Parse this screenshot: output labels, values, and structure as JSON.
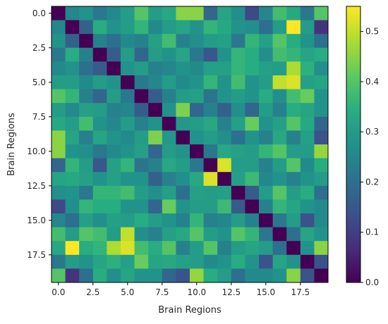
{
  "chart_data": {
    "type": "heatmap",
    "title": "",
    "xlabel": "Brain Regions",
    "ylabel": "Brain Regions",
    "n": 20,
    "xticks": [
      0.0,
      2.5,
      5.0,
      7.5,
      10.0,
      12.5,
      15.0,
      17.5
    ],
    "xtick_labels": [
      "0.0",
      "2.5",
      "5.0",
      "7.5",
      "10.0",
      "12.5",
      "15.0",
      "17.5"
    ],
    "yticks": [
      0.0,
      2.5,
      5.0,
      7.5,
      10.0,
      12.5,
      15.0,
      17.5
    ],
    "ytick_labels": [
      "0.0",
      "2.5",
      "5.0",
      "7.5",
      "10.0",
      "12.5",
      "15.0",
      "17.5"
    ],
    "colormap": "viridis",
    "vmin": 0.0,
    "vmax": 0.55,
    "colorbar_ticks": [
      0.0,
      0.1,
      0.2,
      0.3,
      0.4,
      0.5
    ],
    "colorbar_tick_labels": [
      "0.0",
      "0.1",
      "0.2",
      "0.3",
      "0.4",
      "0.5"
    ],
    "colorbar_placement": "right",
    "grid": false,
    "values": [
      [
        0.0,
        0.25,
        0.28,
        0.22,
        0.26,
        0.3,
        0.4,
        0.3,
        0.33,
        0.45,
        0.45,
        0.18,
        0.32,
        0.27,
        0.12,
        0.25,
        0.38,
        0.33,
        0.22,
        0.4
      ],
      [
        0.25,
        0.0,
        0.17,
        0.34,
        0.28,
        0.3,
        0.36,
        0.26,
        0.3,
        0.32,
        0.28,
        0.36,
        0.33,
        0.28,
        0.27,
        0.2,
        0.3,
        0.55,
        0.3,
        0.08
      ],
      [
        0.28,
        0.17,
        0.0,
        0.24,
        0.2,
        0.26,
        0.24,
        0.31,
        0.38,
        0.24,
        0.27,
        0.3,
        0.31,
        0.22,
        0.36,
        0.31,
        0.4,
        0.34,
        0.28,
        0.2
      ],
      [
        0.22,
        0.34,
        0.24,
        0.0,
        0.16,
        0.3,
        0.18,
        0.3,
        0.28,
        0.32,
        0.22,
        0.15,
        0.28,
        0.36,
        0.34,
        0.27,
        0.38,
        0.36,
        0.32,
        0.34
      ],
      [
        0.26,
        0.28,
        0.2,
        0.16,
        0.0,
        0.28,
        0.3,
        0.24,
        0.25,
        0.28,
        0.26,
        0.31,
        0.31,
        0.36,
        0.34,
        0.31,
        0.3,
        0.48,
        0.35,
        0.27
      ],
      [
        0.3,
        0.3,
        0.26,
        0.3,
        0.28,
        0.0,
        0.22,
        0.25,
        0.3,
        0.26,
        0.28,
        0.36,
        0.28,
        0.38,
        0.28,
        0.3,
        0.5,
        0.52,
        0.31,
        0.32
      ],
      [
        0.4,
        0.36,
        0.24,
        0.18,
        0.3,
        0.22,
        0.0,
        0.16,
        0.24,
        0.3,
        0.31,
        0.21,
        0.28,
        0.3,
        0.28,
        0.34,
        0.27,
        0.38,
        0.42,
        0.28
      ],
      [
        0.3,
        0.26,
        0.31,
        0.3,
        0.24,
        0.25,
        0.16,
        0.0,
        0.28,
        0.44,
        0.18,
        0.24,
        0.17,
        0.27,
        0.18,
        0.3,
        0.24,
        0.34,
        0.32,
        0.28
      ],
      [
        0.33,
        0.3,
        0.38,
        0.28,
        0.25,
        0.3,
        0.24,
        0.28,
        0.0,
        0.29,
        0.3,
        0.33,
        0.24,
        0.31,
        0.42,
        0.28,
        0.31,
        0.4,
        0.33,
        0.18
      ],
      [
        0.45,
        0.32,
        0.24,
        0.32,
        0.28,
        0.26,
        0.3,
        0.44,
        0.29,
        0.0,
        0.28,
        0.3,
        0.27,
        0.2,
        0.28,
        0.24,
        0.33,
        0.24,
        0.31,
        0.14
      ],
      [
        0.45,
        0.28,
        0.27,
        0.22,
        0.26,
        0.28,
        0.31,
        0.18,
        0.3,
        0.28,
        0.0,
        0.22,
        0.33,
        0.31,
        0.3,
        0.36,
        0.4,
        0.3,
        0.3,
        0.46
      ],
      [
        0.18,
        0.36,
        0.3,
        0.15,
        0.31,
        0.36,
        0.21,
        0.24,
        0.33,
        0.3,
        0.22,
        0.0,
        0.52,
        0.3,
        0.3,
        0.24,
        0.3,
        0.4,
        0.26,
        0.34
      ],
      [
        0.32,
        0.33,
        0.31,
        0.28,
        0.31,
        0.28,
        0.28,
        0.17,
        0.24,
        0.27,
        0.33,
        0.52,
        0.0,
        0.31,
        0.37,
        0.25,
        0.28,
        0.24,
        0.28,
        0.3
      ],
      [
        0.27,
        0.28,
        0.22,
        0.36,
        0.36,
        0.38,
        0.3,
        0.27,
        0.31,
        0.2,
        0.31,
        0.3,
        0.31,
        0.0,
        0.16,
        0.3,
        0.4,
        0.3,
        0.34,
        0.2
      ],
      [
        0.12,
        0.27,
        0.36,
        0.34,
        0.34,
        0.28,
        0.28,
        0.18,
        0.42,
        0.28,
        0.3,
        0.3,
        0.37,
        0.16,
        0.0,
        0.24,
        0.36,
        0.32,
        0.28,
        0.26
      ],
      [
        0.25,
        0.2,
        0.31,
        0.27,
        0.31,
        0.3,
        0.34,
        0.3,
        0.28,
        0.24,
        0.36,
        0.24,
        0.25,
        0.3,
        0.24,
        0.0,
        0.22,
        0.3,
        0.14,
        0.26
      ],
      [
        0.38,
        0.3,
        0.4,
        0.38,
        0.3,
        0.5,
        0.27,
        0.24,
        0.31,
        0.33,
        0.4,
        0.3,
        0.28,
        0.4,
        0.36,
        0.22,
        0.0,
        0.2,
        0.32,
        0.28
      ],
      [
        0.33,
        0.55,
        0.34,
        0.36,
        0.48,
        0.52,
        0.38,
        0.34,
        0.4,
        0.24,
        0.3,
        0.4,
        0.24,
        0.3,
        0.32,
        0.3,
        0.2,
        0.0,
        0.28,
        0.45
      ],
      [
        0.22,
        0.3,
        0.28,
        0.32,
        0.35,
        0.31,
        0.42,
        0.32,
        0.33,
        0.31,
        0.3,
        0.26,
        0.28,
        0.34,
        0.28,
        0.14,
        0.32,
        0.28,
        0.0,
        0.14
      ],
      [
        0.4,
        0.08,
        0.2,
        0.34,
        0.27,
        0.32,
        0.28,
        0.28,
        0.18,
        0.14,
        0.46,
        0.34,
        0.3,
        0.2,
        0.26,
        0.26,
        0.28,
        0.45,
        0.14,
        0.0
      ]
    ]
  }
}
